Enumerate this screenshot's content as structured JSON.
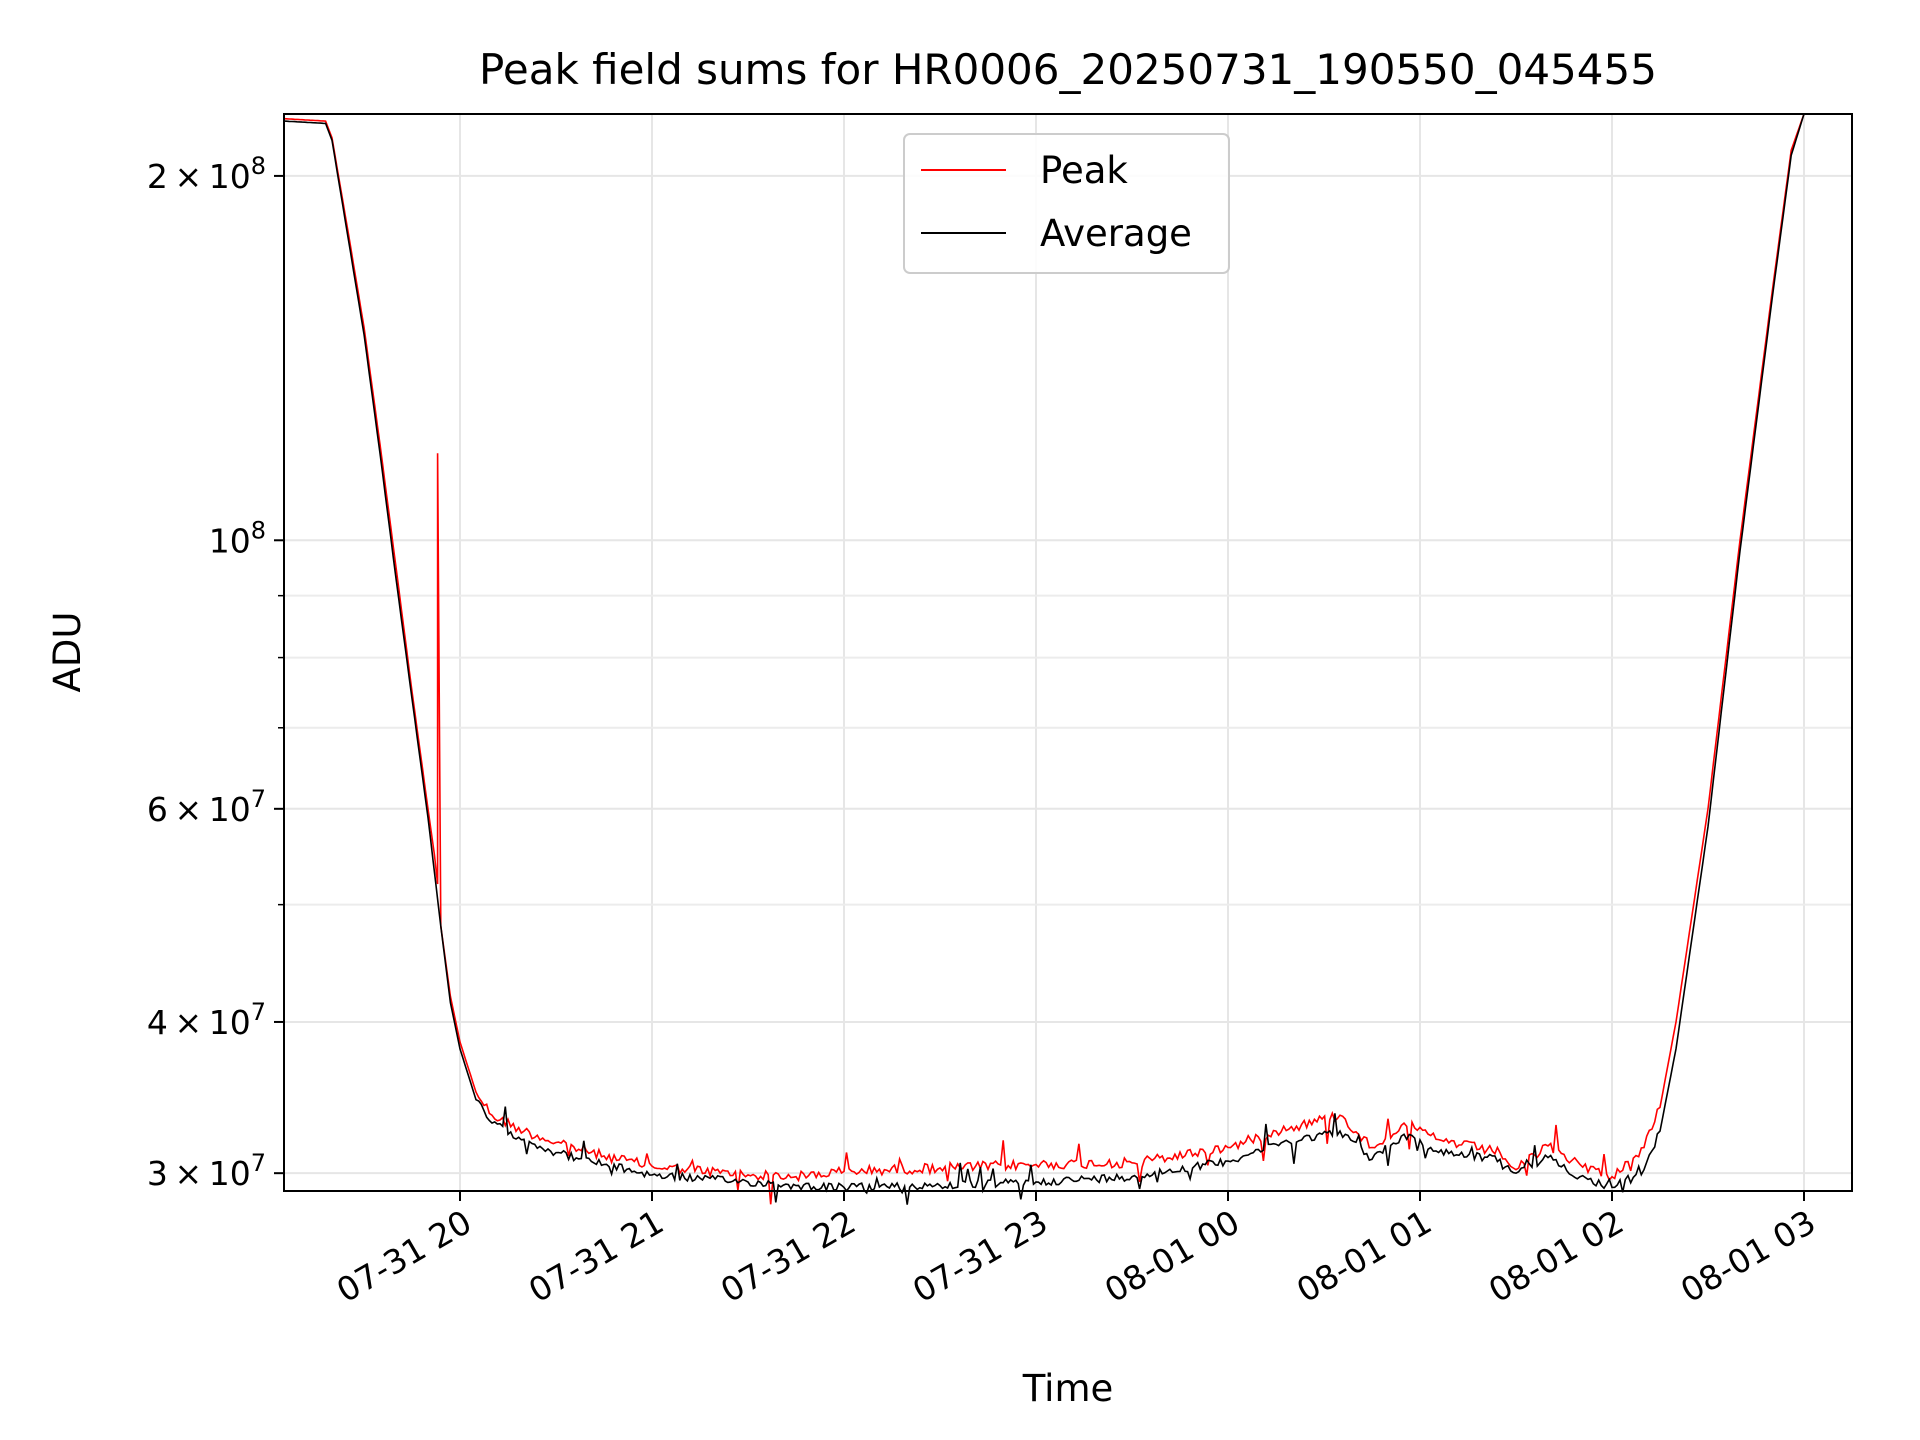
{
  "chart_data": {
    "type": "line",
    "title": "Peak field sums for HR0006_20250731_190550_045455",
    "xlabel": "Time",
    "ylabel": "ADU",
    "yscale": "log",
    "xlim": [
      "2025-07-31 19:05",
      "2025-08-01 03:15"
    ],
    "ylim": [
      29000000,
      225000000
    ],
    "x_ticks": [
      {
        "value": "2025-07-31 20:00",
        "label": "07-31 20"
      },
      {
        "value": "2025-07-31 21:00",
        "label": "07-31 21"
      },
      {
        "value": "2025-07-31 22:00",
        "label": "07-31 22"
      },
      {
        "value": "2025-07-31 23:00",
        "label": "07-31 23"
      },
      {
        "value": "2025-08-01 00:00",
        "label": "08-01 00"
      },
      {
        "value": "2025-08-01 01:00",
        "label": "08-01 01"
      },
      {
        "value": "2025-08-01 02:00",
        "label": "08-01 02"
      },
      {
        "value": "2025-08-01 03:00",
        "label": "08-01 03"
      }
    ],
    "y_major_ticks": [
      {
        "value": 30000000,
        "mant": "3",
        "exp": "7"
      },
      {
        "value": 40000000,
        "mant": "4",
        "exp": "7"
      },
      {
        "value": 60000000,
        "mant": "6",
        "exp": "7"
      },
      {
        "value": 100000000,
        "mant": "",
        "exp": "8"
      },
      {
        "value": 200000000,
        "mant": "2",
        "exp": "8"
      }
    ],
    "y_minor_ticks": [
      50000000,
      70000000,
      80000000,
      90000000
    ],
    "grid": true,
    "legend_position": "upper center",
    "series": [
      {
        "name": "Peak",
        "color": "#ff0000",
        "points": [
          [
            "2025-07-31 19:05",
            223000000
          ],
          [
            "2025-07-31 19:18",
            222000000
          ],
          [
            "2025-07-31 19:20",
            215000000
          ],
          [
            "2025-07-31 19:25",
            180000000
          ],
          [
            "2025-07-31 19:30",
            150000000
          ],
          [
            "2025-07-31 19:35",
            120000000
          ],
          [
            "2025-07-31 19:40",
            95000000
          ],
          [
            "2025-07-31 19:45",
            75000000
          ],
          [
            "2025-07-31 19:50",
            60000000
          ],
          [
            "2025-07-31 19:52",
            55000000
          ],
          [
            "2025-07-31 19:53",
            52000000
          ],
          [
            "2025-07-31 19:53",
            118000000
          ],
          [
            "2025-07-31 19:54",
            48000000
          ],
          [
            "2025-07-31 19:57",
            42000000
          ],
          [
            "2025-07-31 20:00",
            38500000
          ],
          [
            "2025-07-31 20:05",
            35000000
          ],
          [
            "2025-07-31 20:10",
            33500000
          ],
          [
            "2025-07-31 20:20",
            32500000
          ],
          [
            "2025-07-31 20:30",
            31800000
          ],
          [
            "2025-07-31 20:45",
            31000000
          ],
          [
            "2025-07-31 21:00",
            30400000
          ],
          [
            "2025-07-31 21:30",
            29900000
          ],
          [
            "2025-07-31 21:45",
            29800000
          ],
          [
            "2025-07-31 22:00",
            30100000
          ],
          [
            "2025-07-31 22:30",
            30300000
          ],
          [
            "2025-07-31 23:00",
            30500000
          ],
          [
            "2025-07-31 23:30",
            30600000
          ],
          [
            "2025-08-01 00:00",
            31500000
          ],
          [
            "2025-08-01 00:15",
            32500000
          ],
          [
            "2025-08-01 00:35",
            33500000
          ],
          [
            "2025-08-01 00:45",
            31500000
          ],
          [
            "2025-08-01 00:55",
            33000000
          ],
          [
            "2025-08-01 01:05",
            32000000
          ],
          [
            "2025-08-01 01:25",
            31200000
          ],
          [
            "2025-08-01 01:30",
            30200000
          ],
          [
            "2025-08-01 01:40",
            31600000
          ],
          [
            "2025-08-01 01:50",
            30500000
          ],
          [
            "2025-08-01 02:00",
            29800000
          ],
          [
            "2025-08-01 02:10",
            31500000
          ],
          [
            "2025-08-01 02:15",
            34000000
          ],
          [
            "2025-08-01 02:20",
            40000000
          ],
          [
            "2025-08-01 02:30",
            60000000
          ],
          [
            "2025-08-01 02:40",
            100000000
          ],
          [
            "2025-08-01 02:50",
            160000000
          ],
          [
            "2025-08-01 02:56",
            210000000
          ],
          [
            "2025-08-01 03:00",
            225000000
          ]
        ]
      },
      {
        "name": "Average",
        "color": "#000000",
        "points": [
          [
            "2025-07-31 19:05",
            222000000
          ],
          [
            "2025-07-31 19:18",
            221000000
          ],
          [
            "2025-07-31 19:20",
            214000000
          ],
          [
            "2025-07-31 19:25",
            178000000
          ],
          [
            "2025-07-31 19:30",
            148000000
          ],
          [
            "2025-07-31 19:35",
            118000000
          ],
          [
            "2025-07-31 19:40",
            93000000
          ],
          [
            "2025-07-31 19:45",
            74000000
          ],
          [
            "2025-07-31 19:50",
            59000000
          ],
          [
            "2025-07-31 19:54",
            48000000
          ],
          [
            "2025-07-31 19:57",
            41500000
          ],
          [
            "2025-07-31 20:00",
            38000000
          ],
          [
            "2025-07-31 20:05",
            34500000
          ],
          [
            "2025-07-31 20:10",
            33000000
          ],
          [
            "2025-07-31 20:20",
            32000000
          ],
          [
            "2025-07-31 20:30",
            31200000
          ],
          [
            "2025-07-31 20:45",
            30500000
          ],
          [
            "2025-07-31 21:00",
            29900000
          ],
          [
            "2025-07-31 21:30",
            29500000
          ],
          [
            "2025-07-31 21:45",
            29300000
          ],
          [
            "2025-07-31 22:00",
            29200000
          ],
          [
            "2025-07-31 22:30",
            29300000
          ],
          [
            "2025-07-31 23:00",
            29500000
          ],
          [
            "2025-07-31 23:30",
            29800000
          ],
          [
            "2025-08-01 00:00",
            30700000
          ],
          [
            "2025-08-01 00:15",
            31700000
          ],
          [
            "2025-08-01 00:35",
            32500000
          ],
          [
            "2025-08-01 00:45",
            30800000
          ],
          [
            "2025-08-01 00:55",
            32300000
          ],
          [
            "2025-08-01 01:05",
            31300000
          ],
          [
            "2025-08-01 01:25",
            30800000
          ],
          [
            "2025-08-01 01:30",
            30000000
          ],
          [
            "2025-08-01 01:40",
            30900000
          ],
          [
            "2025-08-01 01:50",
            29800000
          ],
          [
            "2025-08-01 02:00",
            29200000
          ],
          [
            "2025-08-01 02:10",
            30200000
          ],
          [
            "2025-08-01 02:15",
            32500000
          ],
          [
            "2025-08-01 02:20",
            38000000
          ],
          [
            "2025-08-01 02:30",
            58000000
          ],
          [
            "2025-08-01 02:40",
            98000000
          ],
          [
            "2025-08-01 02:50",
            158000000
          ],
          [
            "2025-08-01 02:56",
            208000000
          ],
          [
            "2025-08-01 03:00",
            225000000
          ]
        ]
      }
    ]
  }
}
